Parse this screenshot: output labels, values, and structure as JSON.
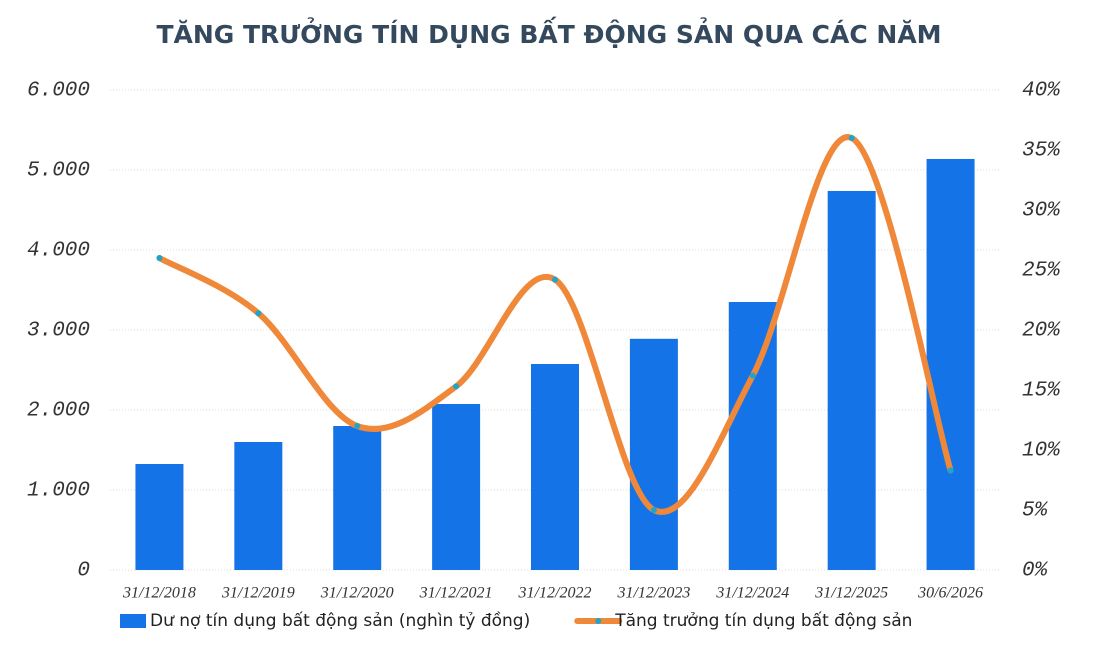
{
  "chart_data": {
    "type": "bar-line",
    "title": "TĂNG TRƯỞNG TÍN DỤNG BẤT ĐỘNG SẢN QUA CÁC NĂM",
    "categories": [
      "31/12/2018",
      "31/12/2019",
      "31/12/2020",
      "31/12/2021",
      "31/12/2022",
      "31/12/2023",
      "31/12/2024",
      "31/12/2025",
      "30/6/2026"
    ],
    "series": [
      {
        "name": "Dư nợ tín dụng bất động sản (nghìn tỷ đồng)",
        "color": "#1473e6",
        "kind": "bar",
        "values": [
          1325,
          1600,
          1800,
          2075,
          2575,
          2890,
          3350,
          4738,
          5138
        ]
      },
      {
        "name": "Tăng trưởng tín dụng bất động sản",
        "color": "#f0883a",
        "marker_color": "#1fa5c8",
        "kind": "line",
        "axis": "y2",
        "values": [
          26,
          21.4,
          12,
          15.3,
          24.2,
          5,
          16.2,
          36,
          8.3
        ]
      }
    ],
    "ylim": [
      0,
      6000
    ],
    "yticks": [
      0,
      {
        "value": 1000,
        "label": "1.000"
      },
      {
        "value": 2000,
        "label": "2.000"
      },
      {
        "value": 3000,
        "label": "3.000"
      },
      {
        "value": 4000,
        "label": "4.000"
      },
      {
        "value": 5000,
        "label": "5.000"
      },
      {
        "value": 6000,
        "label": "6.000"
      }
    ],
    "y2lim": [
      0,
      40
    ],
    "y2ticks": [
      {
        "value": 0,
        "label": "0%"
      },
      {
        "value": 5,
        "label": "5%"
      },
      {
        "value": 10,
        "label": "10%"
      },
      {
        "value": 15,
        "label": "15%"
      },
      {
        "value": 20,
        "label": "20%"
      },
      {
        "value": 25,
        "label": "25%"
      },
      {
        "value": 30,
        "label": "30%"
      },
      {
        "value": 35,
        "label": "35%"
      },
      {
        "value": 40,
        "label": "40%"
      }
    ],
    "grid": true
  }
}
